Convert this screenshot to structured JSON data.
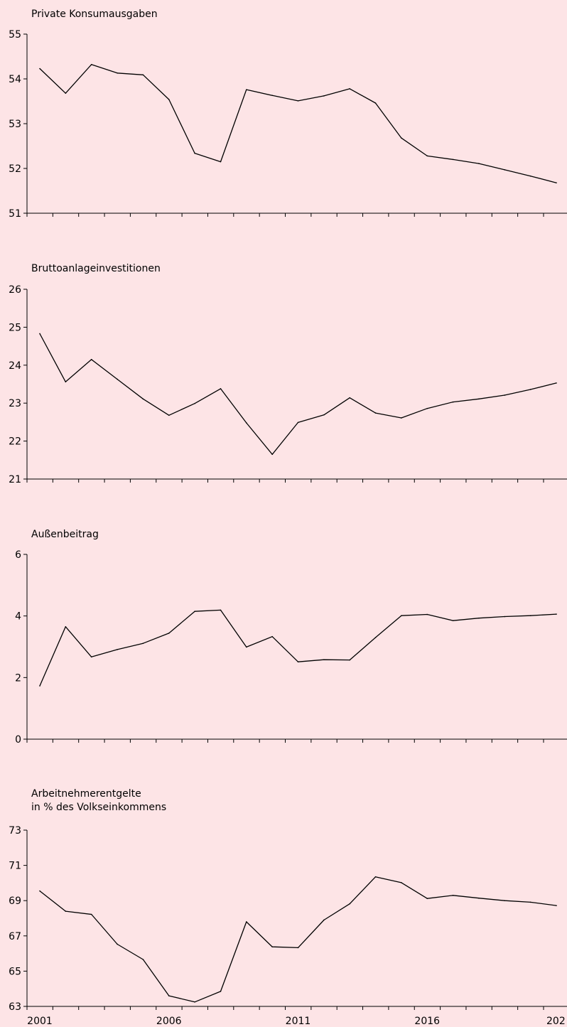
{
  "chart_data": [
    {
      "type": "line",
      "title": "Private Konsumausgaben",
      "xlabel": "",
      "ylabel": "",
      "ylim": [
        51,
        55
      ],
      "yticks": [
        51,
        52,
        53,
        54,
        55
      ],
      "x": [
        2001,
        2002,
        2003,
        2004,
        2005,
        2006,
        2007,
        2008,
        2009,
        2010,
        2011,
        2012,
        2013,
        2014,
        2015,
        2016,
        2017,
        2018,
        2019,
        2020,
        2021
      ],
      "values": [
        54.23,
        53.68,
        54.32,
        54.13,
        54.09,
        53.54,
        52.34,
        52.15,
        53.76,
        53.63,
        53.51,
        53.62,
        53.78,
        53.46,
        52.68,
        52.28,
        52.2,
        52.11,
        51.97,
        51.83,
        51.68
      ],
      "grid": false
    },
    {
      "type": "line",
      "title": "Bruttoanlageinvestitionen",
      "xlabel": "",
      "ylabel": "",
      "ylim": [
        21,
        26
      ],
      "yticks": [
        21,
        22,
        23,
        24,
        25,
        26
      ],
      "x": [
        2001,
        2002,
        2003,
        2004,
        2005,
        2006,
        2007,
        2008,
        2009,
        2010,
        2011,
        2012,
        2013,
        2014,
        2015,
        2016,
        2017,
        2018,
        2019,
        2020,
        2021
      ],
      "values": [
        24.83,
        23.56,
        24.15,
        23.63,
        23.11,
        22.68,
        22.99,
        23.38,
        22.48,
        21.65,
        22.49,
        22.69,
        23.14,
        22.74,
        22.61,
        22.86,
        23.03,
        23.11,
        23.21,
        23.36,
        23.53
      ],
      "grid": false
    },
    {
      "type": "line",
      "title": "Außenbeitrag",
      "xlabel": "",
      "ylabel": "",
      "ylim": [
        0,
        6
      ],
      "yticks": [
        0,
        2,
        4,
        6
      ],
      "x": [
        2001,
        2002,
        2003,
        2004,
        2005,
        2006,
        2007,
        2008,
        2009,
        2010,
        2011,
        2012,
        2013,
        2014,
        2015,
        2016,
        2017,
        2018,
        2019,
        2020,
        2021
      ],
      "values": [
        1.73,
        3.65,
        2.67,
        2.91,
        3.11,
        3.44,
        4.15,
        4.19,
        2.99,
        3.33,
        2.51,
        2.58,
        2.57,
        3.3,
        4.01,
        4.05,
        3.85,
        3.93,
        3.98,
        4.01,
        4.06
      ],
      "grid": false
    },
    {
      "type": "line",
      "title": "Arbeitnehmerentgelte",
      "subtitle": "in % des Volkseinkommens",
      "xlabel": "",
      "ylabel": "",
      "ylim": [
        63,
        73
      ],
      "yticks": [
        63,
        65,
        67,
        69,
        71,
        73
      ],
      "x": [
        2001,
        2002,
        2003,
        2004,
        2005,
        2006,
        2007,
        2008,
        2009,
        2010,
        2011,
        2012,
        2013,
        2014,
        2015,
        2016,
        2017,
        2018,
        2019,
        2020,
        2021
      ],
      "values": [
        69.55,
        68.4,
        68.22,
        66.53,
        65.66,
        63.6,
        63.25,
        63.85,
        67.8,
        66.38,
        66.33,
        67.9,
        68.82,
        70.35,
        70.02,
        69.12,
        69.3,
        69.14,
        69.0,
        68.91,
        68.72
      ],
      "xticklabels": [
        "2001",
        "2006",
        "2011",
        "2016",
        "202"
      ],
      "grid": false
    }
  ]
}
